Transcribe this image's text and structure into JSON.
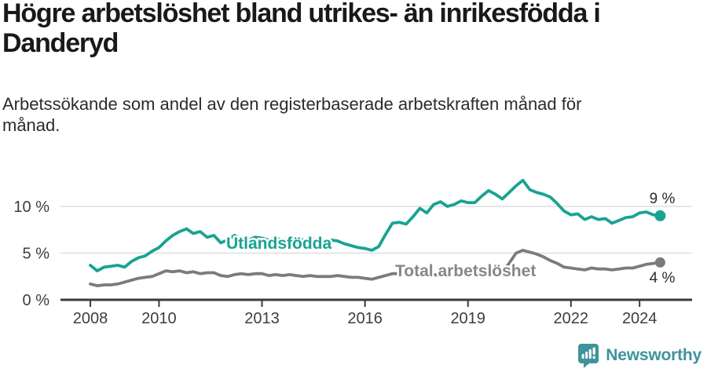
{
  "header": {
    "title": "Högre arbetslöshet bland utrikes- än inrikesfödda i\nDanderyd",
    "subtitle": "Arbetssökande som andel av den registerbaserade arbetskraften månad för\nmånad."
  },
  "chart_data": {
    "type": "line",
    "x_label_unit": "year",
    "x": [
      2008.0,
      2008.2,
      2008.4,
      2008.6,
      2008.8,
      2009.0,
      2009.2,
      2009.4,
      2009.6,
      2009.8,
      2010.0,
      2010.2,
      2010.4,
      2010.6,
      2010.8,
      2011.0,
      2011.2,
      2011.4,
      2011.6,
      2011.8,
      2012.0,
      2012.2,
      2012.4,
      2012.6,
      2012.8,
      2013.0,
      2013.2,
      2013.4,
      2013.6,
      2013.8,
      2014.0,
      2014.2,
      2014.4,
      2014.6,
      2014.8,
      2015.0,
      2015.2,
      2015.4,
      2015.6,
      2015.8,
      2016.0,
      2016.2,
      2016.4,
      2016.6,
      2016.8,
      2017.0,
      2017.2,
      2017.4,
      2017.6,
      2017.8,
      2018.0,
      2018.2,
      2018.4,
      2018.6,
      2018.8,
      2019.0,
      2019.2,
      2019.4,
      2019.6,
      2019.8,
      2020.0,
      2020.2,
      2020.4,
      2020.6,
      2020.8,
      2021.0,
      2021.2,
      2021.4,
      2021.6,
      2021.8,
      2022.0,
      2022.2,
      2022.4,
      2022.6,
      2022.8,
      2023.0,
      2023.2,
      2023.4,
      2023.6,
      2023.8,
      2024.0,
      2024.2,
      2024.4,
      2024.6
    ],
    "series": [
      {
        "name": "Utlandsfödda",
        "color": "#19a392",
        "label_color": "#19a392",
        "end_label": "9 %",
        "values": [
          3.7,
          3.1,
          3.5,
          3.6,
          3.7,
          3.5,
          4.1,
          4.5,
          4.7,
          5.2,
          5.6,
          6.3,
          6.9,
          7.3,
          7.6,
          7.1,
          7.3,
          6.7,
          6.9,
          6.1,
          6.4,
          6.9,
          6.5,
          6.4,
          6.7,
          6.6,
          6.4,
          6.6,
          6.4,
          6.5,
          6.6,
          6.4,
          6.5,
          6.4,
          6.3,
          6.4,
          6.3,
          6.0,
          5.8,
          5.6,
          5.5,
          5.3,
          5.7,
          7.0,
          8.2,
          8.3,
          8.1,
          8.9,
          9.8,
          9.3,
          10.2,
          10.5,
          10.0,
          10.2,
          10.6,
          10.4,
          10.4,
          11.1,
          11.7,
          11.3,
          10.8,
          11.5,
          12.2,
          12.8,
          11.8,
          11.5,
          11.3,
          11.0,
          10.3,
          9.5,
          9.1,
          9.2,
          8.6,
          8.9,
          8.6,
          8.7,
          8.2,
          8.5,
          8.8,
          8.9,
          9.3,
          9.4,
          9.1,
          9.0
        ]
      },
      {
        "name": "Total arbetslöshet",
        "color": "#7b7b7b",
        "label_color": "#878787",
        "end_label": "4 %",
        "values": [
          1.7,
          1.5,
          1.6,
          1.6,
          1.7,
          1.9,
          2.1,
          2.3,
          2.4,
          2.5,
          2.8,
          3.1,
          3.0,
          3.1,
          2.9,
          3.0,
          2.8,
          2.9,
          2.9,
          2.6,
          2.5,
          2.7,
          2.8,
          2.7,
          2.8,
          2.8,
          2.6,
          2.7,
          2.6,
          2.7,
          2.6,
          2.5,
          2.6,
          2.5,
          2.5,
          2.5,
          2.6,
          2.5,
          2.4,
          2.4,
          2.3,
          2.2,
          2.4,
          2.6,
          2.8,
          2.8,
          2.7,
          2.7,
          2.8,
          2.7,
          2.7,
          2.6,
          2.6,
          2.7,
          2.7,
          2.7,
          2.6,
          2.7,
          2.8,
          2.9,
          3.0,
          3.9,
          5.0,
          5.3,
          5.1,
          4.9,
          4.6,
          4.2,
          3.9,
          3.5,
          3.4,
          3.3,
          3.2,
          3.4,
          3.3,
          3.3,
          3.2,
          3.3,
          3.4,
          3.4,
          3.6,
          3.8,
          3.9,
          4.0
        ]
      }
    ],
    "yticks": [
      {
        "value": 0,
        "label": "0 %"
      },
      {
        "value": 5,
        "label": "5 %"
      },
      {
        "value": 10,
        "label": "10 %"
      }
    ],
    "xticks": [
      "2008",
      "2010",
      "2013",
      "2016",
      "2019",
      "2022",
      "2024"
    ],
    "ylim": [
      0,
      13.2
    ],
    "grid": "horizontal",
    "legend_position": "inline-labels"
  },
  "colors": {
    "accent_teal": "#19a392",
    "series_gray": "#7b7b7b",
    "axis": "#3a3a3a",
    "gridline": "#dedede",
    "end_label_text": "#2b2b2b"
  },
  "footer": {
    "brand": "Newsworthy",
    "logo_color": "#3f939c",
    "logo_icon": "speech-bubble-bar-chart-exclamation"
  }
}
